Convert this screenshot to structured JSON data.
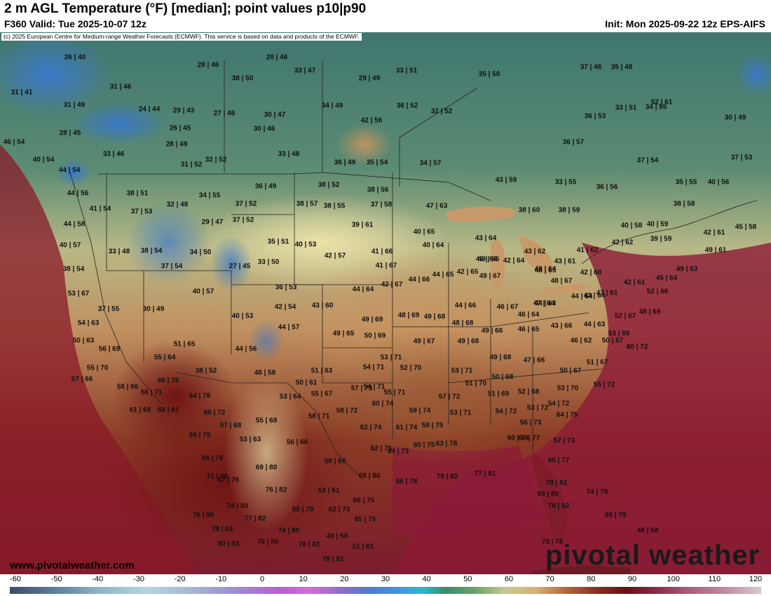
{
  "header": {
    "title": "2 m AGL Temperature (°F) [median]; point values p10|p90",
    "valid": "F360 Valid: Tue 2025-10-07 12z",
    "init": "Init: Mon 2025-09-22 12z EPS-AIFS"
  },
  "map": {
    "copyright": "(c) 2025 European Centre for Medium-range Weather Forecasts (ECMWF). This service is based on data and products of the ECMWF.",
    "website": "www.pivotalweather.com",
    "brand": "pivotal weather"
  },
  "colors": {
    "cold_blue": "#3a78c8",
    "teal": "#3f7a72",
    "green": "#6f9a70",
    "yellow": "#e8dca0",
    "tan": "#c89460",
    "brown": "#9a5a34",
    "dark_red": "#7a1e1e",
    "ocean_maroon": "#8a1c34"
  },
  "colorbar": {
    "ticks": [
      "-60",
      "-50",
      "-40",
      "-30",
      "-20",
      "-10",
      "0",
      "10",
      "20",
      "30",
      "40",
      "50",
      "60",
      "70",
      "80",
      "90",
      "100",
      "110",
      "120"
    ]
  },
  "point_values": [
    "26|40",
    "28|46",
    "28|46",
    "33|47",
    "29|49",
    "33|51",
    "35|50",
    "37|46",
    "35|48",
    "31|41",
    "31|46",
    "38|50",
    "31|49",
    "24|44",
    "29|43",
    "27|46",
    "30|47",
    "34|49",
    "42|56",
    "36|52",
    "32|52",
    "36|53",
    "33|51",
    "34|55",
    "30|49",
    "28|45",
    "26|45",
    "30|46",
    "46|54",
    "28|49",
    "33|46",
    "33|48",
    "36|57",
    "40|54",
    "31|52",
    "32|52",
    "36|49",
    "35|54",
    "34|57",
    "37|54",
    "37|53",
    "44|54",
    "36|49",
    "38|52",
    "38|56",
    "43|59",
    "33|55",
    "36|56",
    "35|55",
    "40|56",
    "44|56",
    "38|51",
    "34|55",
    "37|52",
    "38|55",
    "37|58",
    "38|57",
    "47|63",
    "38|60",
    "38|59",
    "38|58",
    "41|54",
    "37|53",
    "32|48",
    "29|47",
    "37|52",
    "39|61",
    "40|65",
    "40|58",
    "40|59",
    "45|58",
    "44|58",
    "40|53",
    "43|64",
    "49|64",
    "42|61",
    "39|59",
    "40|57",
    "33|48",
    "38|54",
    "34|50",
    "35|51",
    "41|66",
    "40|64",
    "43|62",
    "41|62",
    "42|62",
    "49|61",
    "37|54",
    "27|45",
    "33|50",
    "42|57",
    "41|67",
    "49|66",
    "42|64",
    "48|65",
    "43|61",
    "49|63",
    "38|54",
    "42|65",
    "48|64",
    "42|60",
    "45|64",
    "53|67",
    "40|57",
    "36|53",
    "44|64",
    "42|67",
    "44|66",
    "44|65",
    "49|67",
    "48|67",
    "43|61",
    "42|61",
    "52|66",
    "37|55",
    "30|49",
    "42|54",
    "43|60",
    "44|66",
    "46|67",
    "47|64",
    "44|64",
    "43|64",
    "44|63",
    "48|69",
    "54|63",
    "40|53",
    "44|57",
    "49|69",
    "48|69",
    "49|68",
    "48|68",
    "46|64",
    "44|63",
    "52|67",
    "50|63",
    "49|65",
    "50|69",
    "49|66",
    "46|65",
    "43|66",
    "53|69",
    "56|69",
    "51|65",
    "44|56",
    "49|67",
    "49|68",
    "46|62",
    "50|67",
    "55|64",
    "53|71",
    "49|68",
    "47|66",
    "60|72",
    "55|70",
    "38|52",
    "48|58",
    "51|63",
    "54|71",
    "52|70",
    "53|71",
    "50|67",
    "51|67",
    "57|66",
    "58|66",
    "66|78",
    "50|61",
    "54|71",
    "51|70",
    "50|68",
    "53|70",
    "55|72",
    "56|71",
    "64|78",
    "55|67",
    "53|64",
    "57|73",
    "55|71",
    "57|72",
    "51|69",
    "52|68",
    "61|68",
    "68|81",
    "60|72",
    "58|72",
    "60|74",
    "59|74",
    "53|71",
    "54|72",
    "53|72",
    "54|72",
    "57|68",
    "55|68",
    "58|71",
    "62|74",
    "61|74",
    "59|75",
    "56|73",
    "64|75",
    "69|79",
    "53|63",
    "56|66",
    "62|75",
    "64|73",
    "60|75",
    "65|77",
    "60|74",
    "57|73",
    "66|76",
    "69|80",
    "58|66",
    "63|78",
    "65|77",
    "67|76",
    "71|80",
    "68|80",
    "66|78",
    "79|82",
    "77|81",
    "78|82",
    "74|80",
    "76|82",
    "53|61",
    "66|75",
    "69|80",
    "74|79",
    "78|82",
    "76|80",
    "68|79",
    "62|73",
    "65|75",
    "69|78",
    "78|83",
    "77|82",
    "74|80",
    "48|58",
    "80|83",
    "76|80",
    "78|82",
    "49|58",
    "51|61",
    "73|78",
    "79|82",
    "52|61"
  ]
}
